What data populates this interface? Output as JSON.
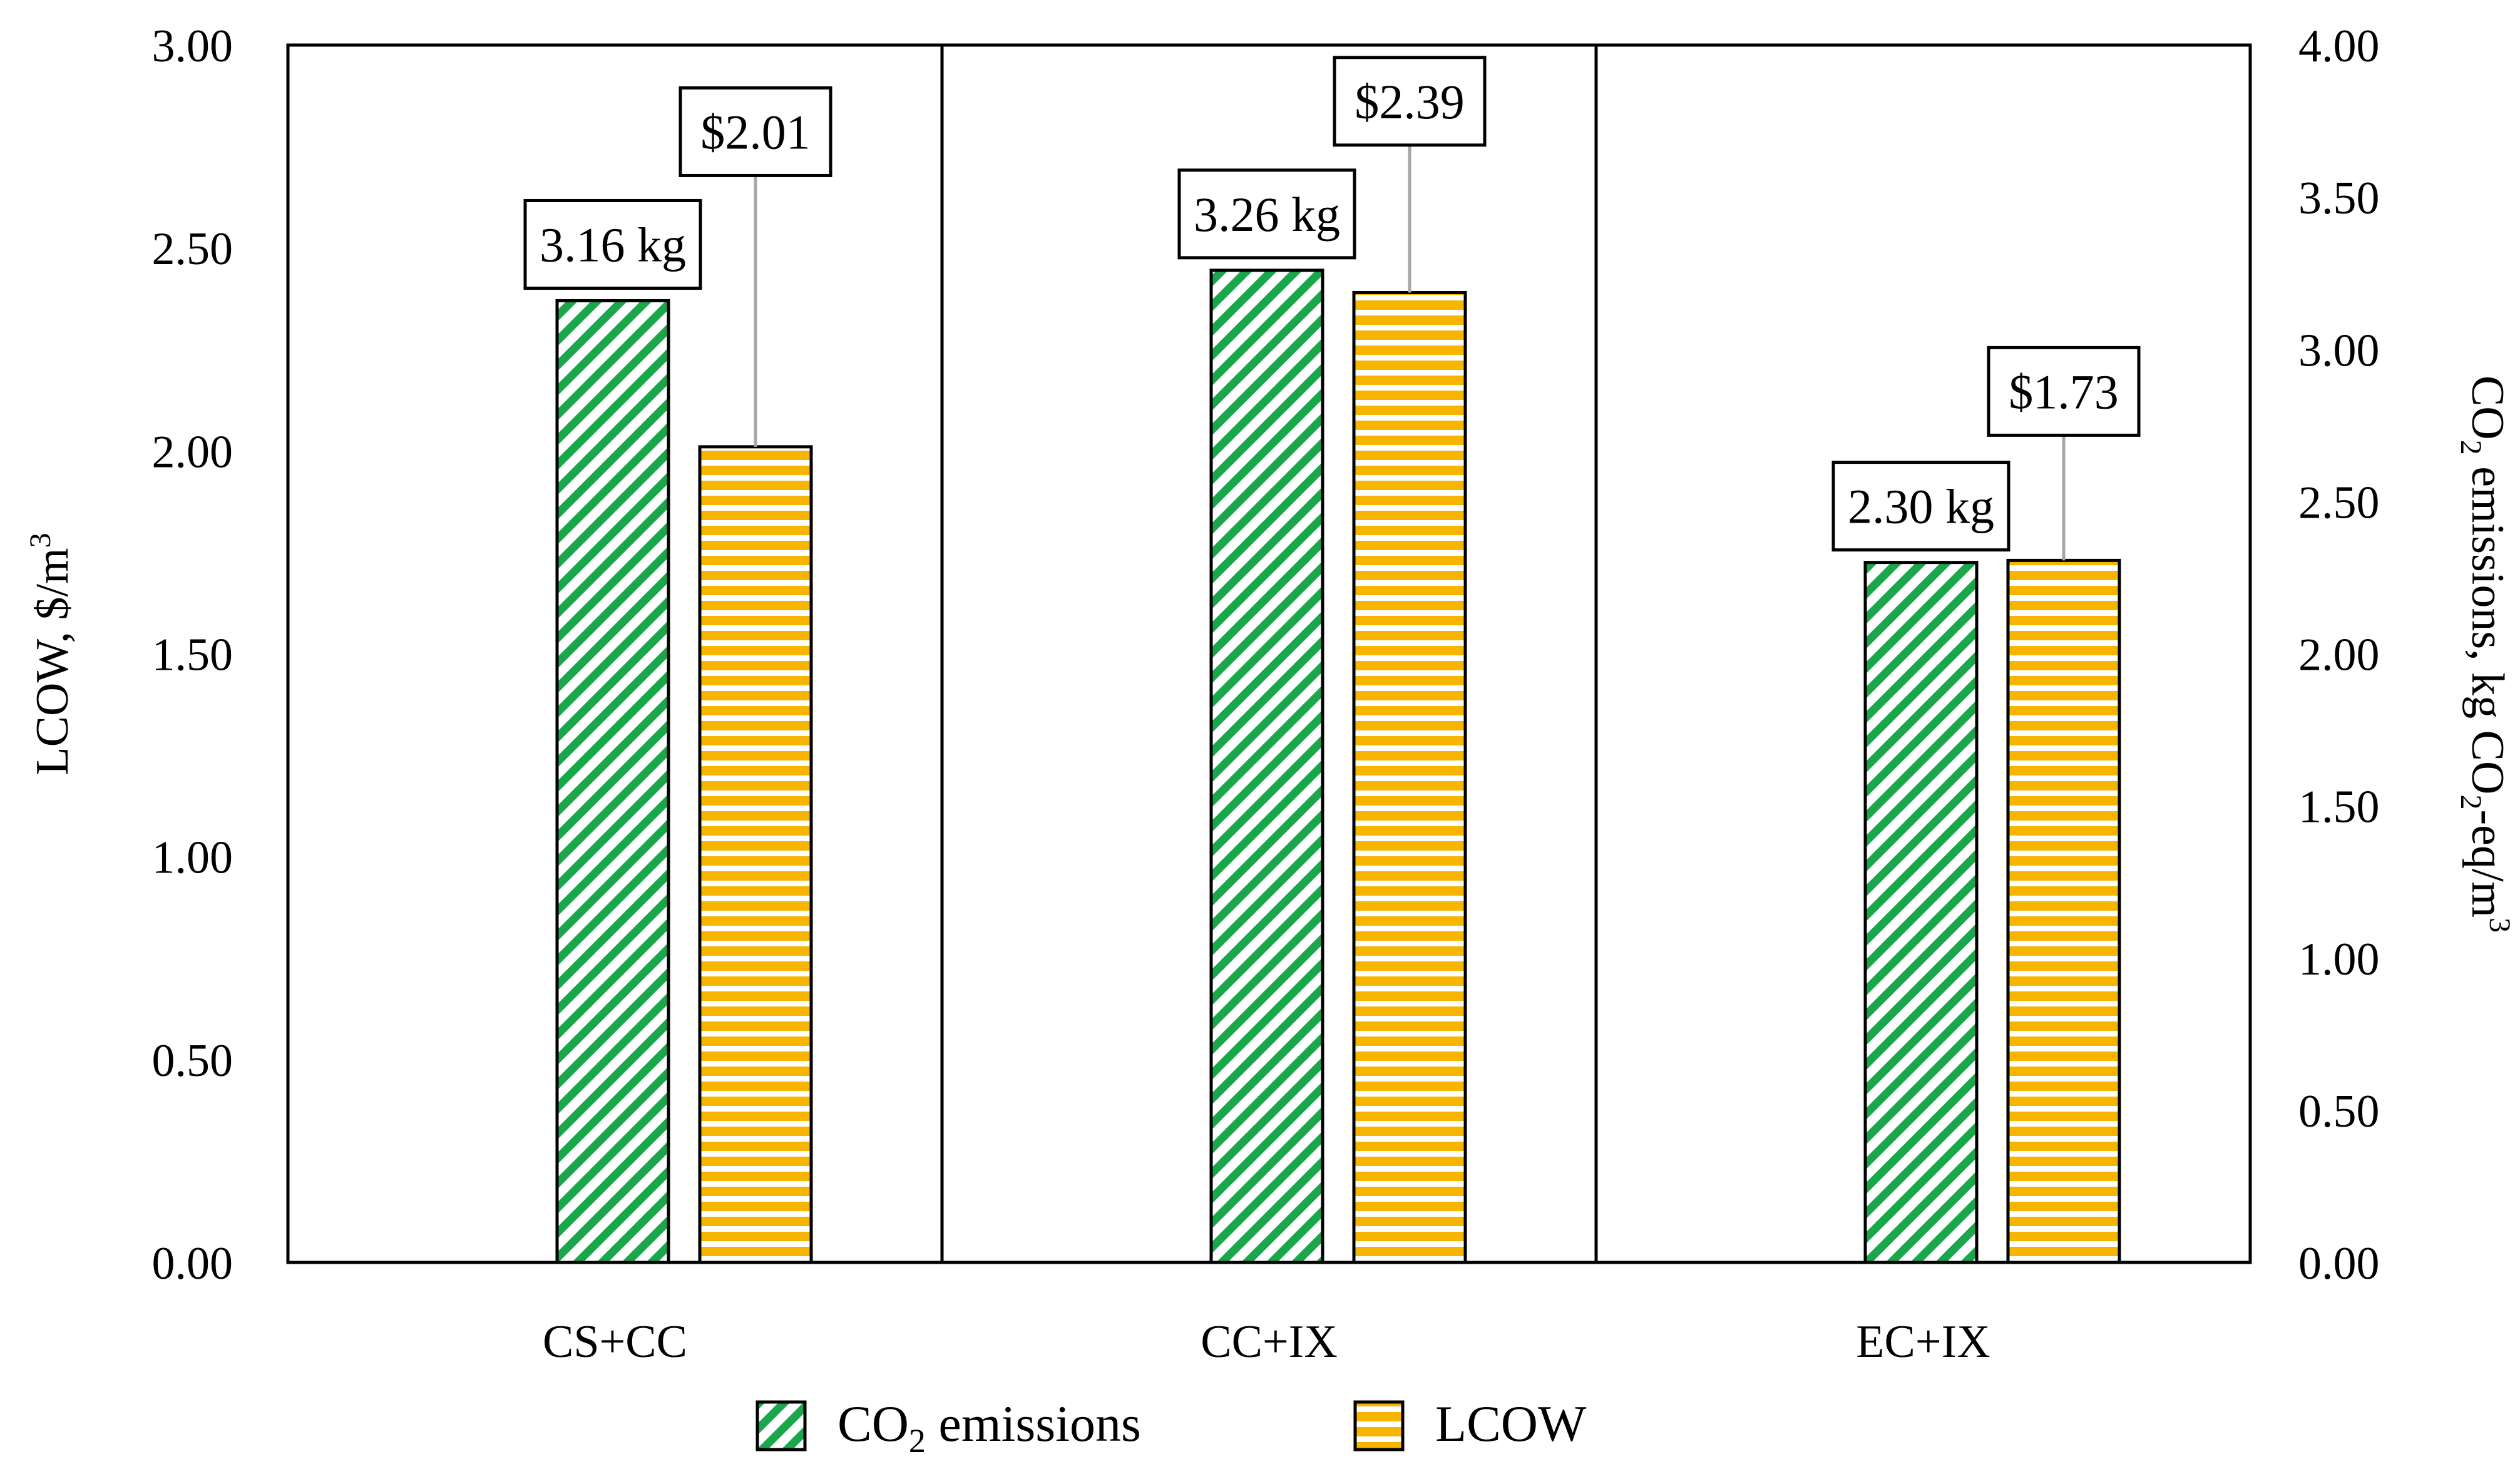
{
  "chart_data": {
    "type": "bar",
    "categories": [
      "CS+CC",
      "CC+IX",
      "EC+IX"
    ],
    "series": [
      {
        "name": "CO2 emissions",
        "axis": "right",
        "values": [
          3.16,
          3.26,
          2.3
        ],
        "labels": [
          "3.16 kg",
          "3.26 kg",
          "2.30 kg"
        ],
        "pattern": "diagonal-stripes",
        "color": "#1aa64b"
      },
      {
        "name": "LCOW",
        "axis": "left",
        "values": [
          2.01,
          2.39,
          1.73
        ],
        "labels": [
          "$2.01",
          "$2.39",
          "$1.73"
        ],
        "pattern": "horizontal-stripes",
        "color": "#f7b500"
      }
    ],
    "left_axis": {
      "label_main": "LCOW, $/m",
      "label_sup": "3",
      "min": 0,
      "max": 3,
      "step": 0.5,
      "ticks": [
        "0.00",
        "0.50",
        "1.00",
        "1.50",
        "2.00",
        "2.50",
        "3.00"
      ]
    },
    "right_axis": {
      "label_parts": [
        "CO",
        "2",
        " emissions, kg CO",
        "2",
        "-eq/m",
        "3"
      ],
      "min": 0,
      "max": 4,
      "step": 0.5,
      "ticks": [
        "0.00",
        "0.50",
        "1.00",
        "1.50",
        "2.00",
        "2.50",
        "3.00",
        "3.50",
        "4.00"
      ]
    },
    "legend": {
      "position": "bottom",
      "items": [
        {
          "name_main": "CO",
          "name_sub": "2",
          "name_rest": " emissions",
          "pattern": "diagonal-stripes"
        },
        {
          "name_main": "LCOW",
          "name_sub": "",
          "name_rest": "",
          "pattern": "horizontal-stripes"
        }
      ]
    },
    "grid": false,
    "panel_dividers": true
  }
}
